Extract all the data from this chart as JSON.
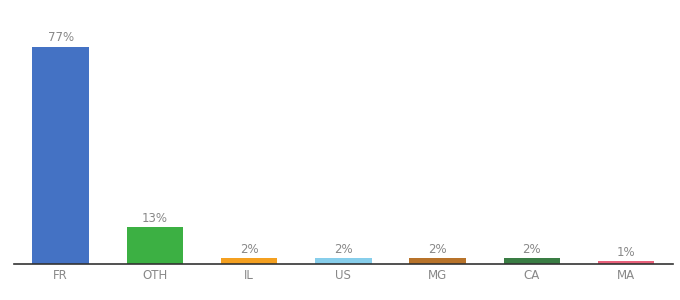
{
  "categories": [
    "FR",
    "OTH",
    "IL",
    "US",
    "MG",
    "CA",
    "MA"
  ],
  "values": [
    77,
    13,
    2,
    2,
    2,
    2,
    1
  ],
  "bar_colors": [
    "#4472c4",
    "#3cb043",
    "#f4a020",
    "#87ceeb",
    "#b8732a",
    "#3a7d44",
    "#e8607a"
  ],
  "xlabel": "",
  "ylabel": "",
  "ylim": [
    0,
    85
  ],
  "background_color": "#ffffff",
  "label_fontsize": 8.5,
  "tick_fontsize": 8.5,
  "bar_width": 0.6
}
